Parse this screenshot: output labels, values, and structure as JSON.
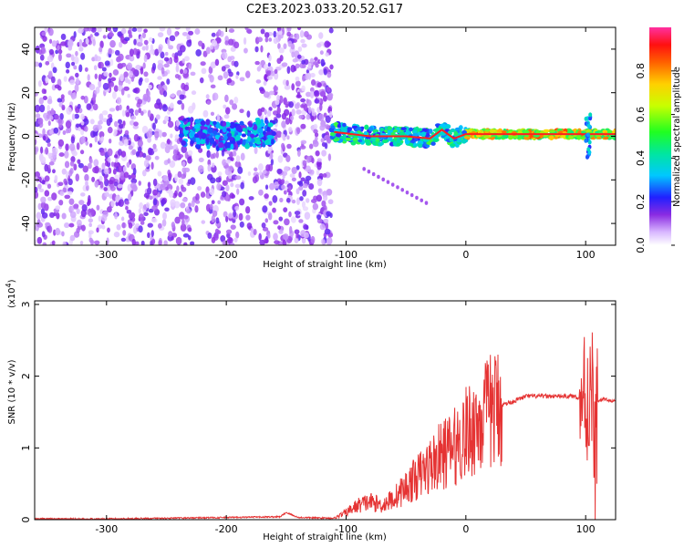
{
  "chart_data": [
    {
      "type": "heatmap",
      "title": "C2E3.2023.033.20.52.G17",
      "xlabel": "Height of straight line (km)",
      "ylabel": "Frequency (Hz)",
      "xlim": [
        -360,
        125
      ],
      "ylim": [
        -50,
        50
      ],
      "x_ticks": [
        -300,
        -200,
        -100,
        0,
        100
      ],
      "y_ticks": [
        -40,
        -20,
        0,
        20,
        40
      ],
      "colorbar": {
        "label": "Normalized spectral amplitude",
        "range": [
          0.0,
          1.0
        ],
        "ticks": [
          0.0,
          0.2,
          0.4,
          0.6,
          0.8
        ],
        "tick_labels": [
          "0.0",
          "0.2",
          "0.4",
          "0.6",
          "0.8"
        ]
      },
      "ridge": {
        "x": [
          -235,
          -200,
          -170,
          -110,
          -80,
          -50,
          -30,
          -20,
          -10,
          0,
          50,
          100,
          125
        ],
        "y": [
          2,
          0,
          2,
          2,
          0,
          0,
          -1,
          3,
          -1,
          1,
          1,
          1,
          1
        ]
      }
    },
    {
      "type": "line",
      "xlabel": "Height of straight line (km)",
      "ylabel": "SNR (10 * v/v)",
      "y_multiplier_label": "(x10",
      "y_multiplier_exp": "4",
      "y_multiplier_close": ")",
      "xlim": [
        -360,
        125
      ],
      "ylim": [
        0,
        3.05
      ],
      "x_ticks": [
        -300,
        -200,
        -100,
        0,
        100
      ],
      "y_ticks": [
        0,
        1,
        2,
        3
      ],
      "series": [
        {
          "color": "#e53333",
          "x": [
            -360,
            -300,
            -200,
            -155,
            -150,
            -140,
            -110,
            -100,
            -90,
            -80,
            -70,
            -60,
            -50,
            -40,
            -30,
            -20,
            -10,
            0,
            10,
            20,
            30,
            40,
            50,
            60,
            70,
            80,
            90,
            95,
            100,
            103,
            105,
            107,
            110,
            115,
            120,
            125
          ],
          "y": [
            0.01,
            0.01,
            0.03,
            0.04,
            0.1,
            0.03,
            0.02,
            0.1,
            0.2,
            0.25,
            0.2,
            0.3,
            0.45,
            0.6,
            0.75,
            0.9,
            1.0,
            1.2,
            1.35,
            1.5,
            1.6,
            1.65,
            1.72,
            1.72,
            1.72,
            1.72,
            1.72,
            1.7,
            1.75,
            1.55,
            2.2,
            0.6,
            1.65,
            1.68,
            1.66,
            1.65
          ]
        }
      ]
    }
  ]
}
